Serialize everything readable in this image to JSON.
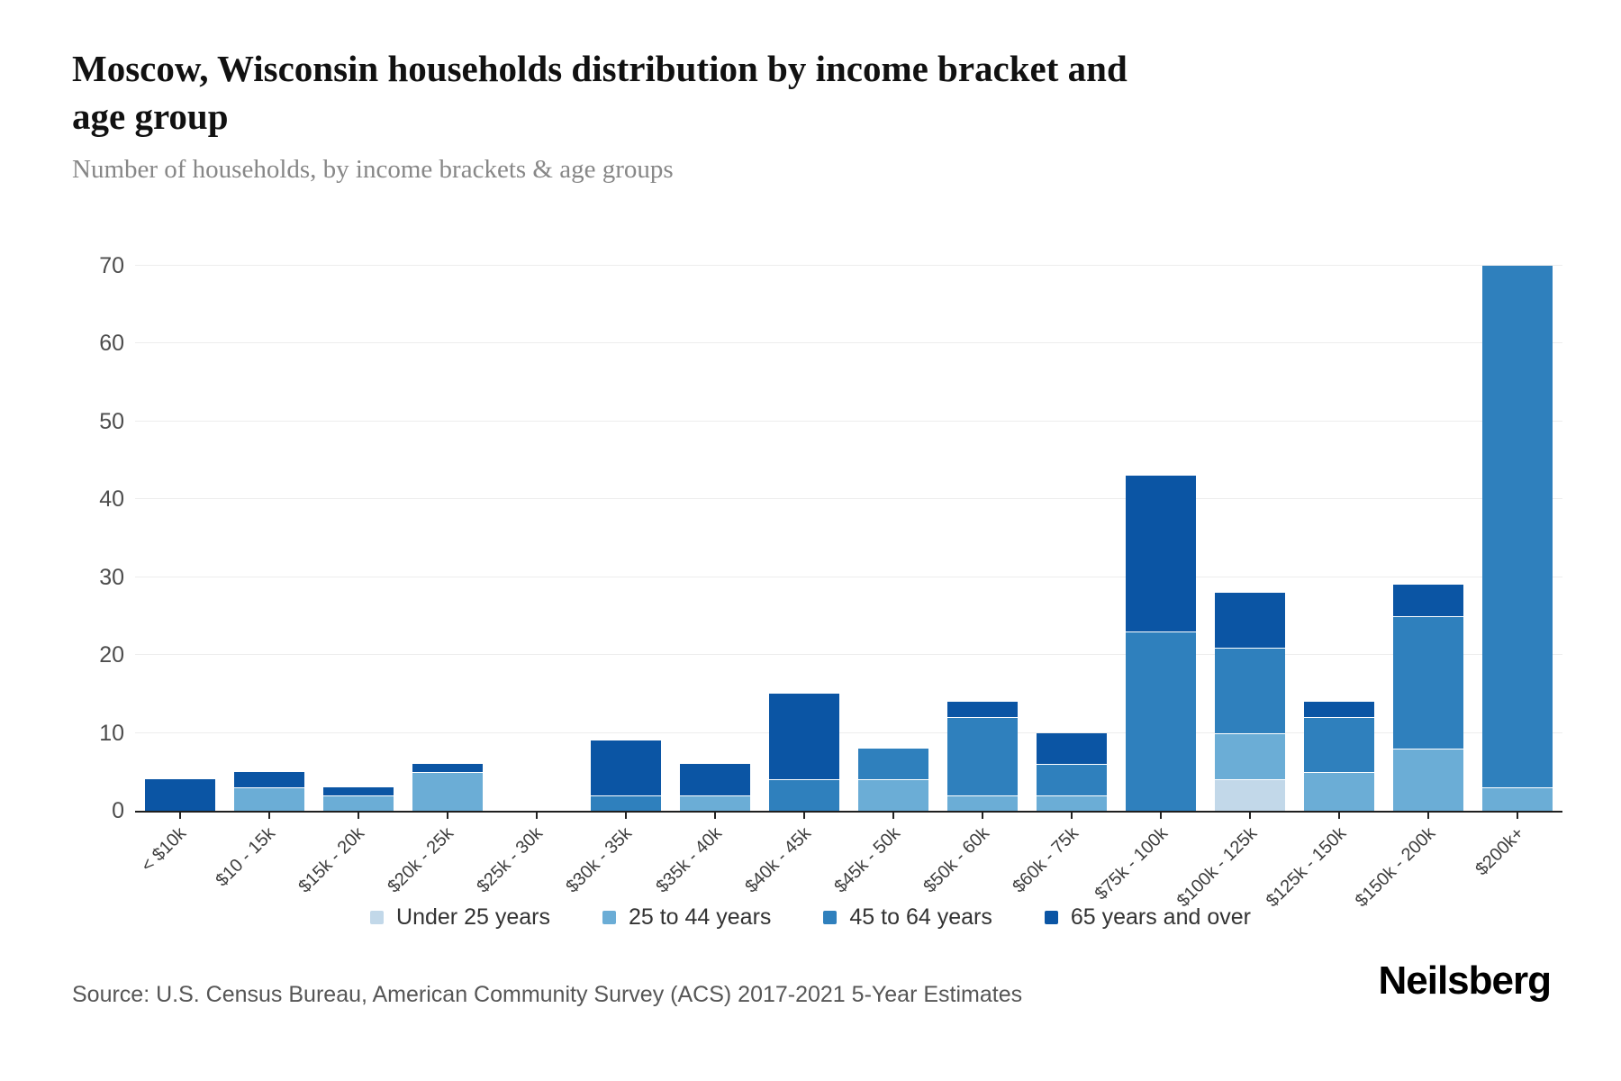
{
  "header": {
    "title_line1": "Moscow, Wisconsin households distribution by income bracket and",
    "title_line2": "age group",
    "subtitle": "Number of households, by income brackets & age groups"
  },
  "chart_data": {
    "type": "bar",
    "stacked": true,
    "title": "Moscow, Wisconsin households distribution by income bracket and age group",
    "xlabel": "",
    "ylabel": "Number of households",
    "ylim": [
      0,
      70
    ],
    "yticks": [
      0,
      10,
      20,
      30,
      40,
      50,
      60,
      70
    ],
    "grid": true,
    "legend_position": "bottom",
    "categories": [
      "< $10k",
      "$10 - 15k",
      "$15k - 20k",
      "$20k - 25k",
      "$25k - 30k",
      "$30k - 35k",
      "$35k - 40k",
      "$40k - 45k",
      "$45k - 50k",
      "$50k - 60k",
      "$60k - 75k",
      "$75k - 100k",
      "$100k - 125k",
      "$125k - 150k",
      "$150k - 200k",
      "$200k+"
    ],
    "series": [
      {
        "name": "Under 25 years",
        "color": "#c2d8e9",
        "values": [
          0,
          0,
          0,
          0,
          0,
          0,
          0,
          0,
          0,
          0,
          0,
          0,
          4,
          0,
          0,
          0
        ]
      },
      {
        "name": "25 to 44 years",
        "color": "#6badd6",
        "values": [
          0,
          3,
          2,
          5,
          0,
          0,
          2,
          0,
          4,
          2,
          2,
          0,
          6,
          5,
          8,
          3
        ]
      },
      {
        "name": "45 to 64 years",
        "color": "#2f80bd",
        "values": [
          0,
          0,
          0,
          0,
          0,
          2,
          0,
          4,
          4,
          10,
          4,
          23,
          11,
          7,
          17,
          67
        ]
      },
      {
        "name": "65 years and over",
        "color": "#0b55a4",
        "values": [
          4,
          2,
          1,
          1,
          0,
          7,
          4,
          11,
          0,
          2,
          4,
          20,
          7,
          2,
          4,
          0
        ]
      }
    ],
    "totals": [
      4,
      5,
      3,
      6,
      0,
      9,
      6,
      15,
      8,
      14,
      10,
      43,
      28,
      14,
      29,
      70
    ]
  },
  "footer": {
    "source": "Source: U.S. Census Bureau, American Community Survey (ACS) 2017-2021 5-Year Estimates",
    "brand": "Neilsberg"
  }
}
